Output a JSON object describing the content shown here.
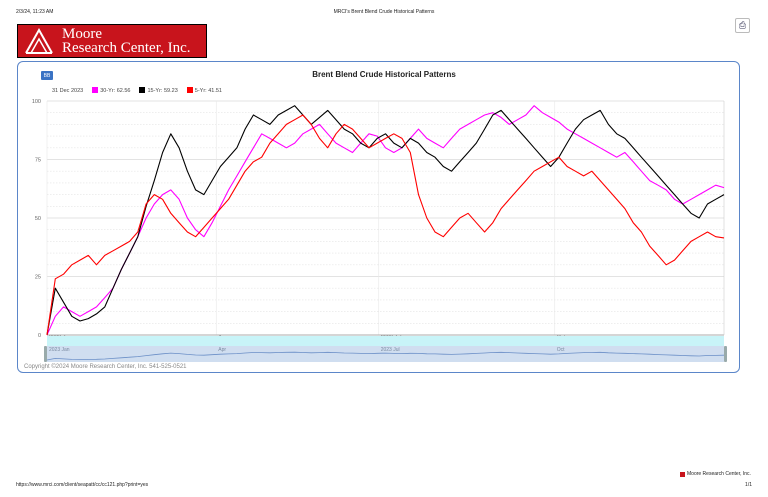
{
  "browser": {
    "datetime": "2/3/24, 11:23 AM",
    "page_title": "MRCI's Brent Blend Crude Historical Patterns",
    "url": "https://www.mrci.com/client/seapatt/cc/cc121.php?print=yes",
    "page_count": "1/1",
    "footer_brand": "Moore Research Center, Inc."
  },
  "logo": {
    "line1": "Moore",
    "line2": "Research Center, Inc."
  },
  "toolbar": {
    "print_icon": "print-icon",
    "bb_label": "BB"
  },
  "legend": {
    "date": "31 Dec 2023",
    "items": [
      {
        "label": "30-Yr: 62.56",
        "color": "#ff00ff"
      },
      {
        "label": "15-Yr: 59.23",
        "color": "#000000"
      },
      {
        "label": "5-Yr: 41.51",
        "color": "#ff0000"
      }
    ]
  },
  "copyright": "Copyright ©2024 Moore Research Center, Inc. 541-525-0521",
  "navigator": {
    "labels": [
      "2023 Jan",
      "Apr",
      "2023 Jul",
      "Oct"
    ]
  },
  "chart_data": {
    "type": "line",
    "title": "Brent Blend Crude Historical Patterns",
    "x_ticks": [
      "2023 Jan",
      "Apr",
      "2023 Jul",
      "Oct"
    ],
    "y_ticks": [
      0,
      25,
      50,
      75,
      100
    ],
    "ylim": [
      0,
      100
    ],
    "grid": true,
    "series": [
      {
        "name": "30-Yr: 62.56",
        "color": "#ff00ff",
        "values": [
          0,
          8,
          12,
          10,
          8,
          10,
          12,
          16,
          20,
          28,
          35,
          42,
          50,
          56,
          60,
          62,
          58,
          50,
          45,
          42,
          48,
          55,
          62,
          68,
          74,
          80,
          86,
          84,
          82,
          80,
          82,
          86,
          88,
          90,
          86,
          82,
          80,
          78,
          82,
          86,
          85,
          80,
          78,
          80,
          84,
          88,
          84,
          82,
          80,
          84,
          88,
          90,
          92,
          94,
          95,
          93,
          90,
          92,
          94,
          98,
          95,
          93,
          91,
          88,
          86,
          84,
          82,
          80,
          78,
          76,
          78,
          74,
          70,
          66,
          64,
          62,
          58,
          56,
          58,
          60,
          62,
          64,
          63
        ]
      },
      {
        "name": "15-Yr: 59.23",
        "color": "#000000",
        "values": [
          0,
          20,
          14,
          8,
          6,
          7,
          9,
          12,
          20,
          28,
          35,
          42,
          55,
          66,
          78,
          86,
          80,
          70,
          62,
          60,
          66,
          72,
          76,
          80,
          88,
          94,
          92,
          90,
          94,
          96,
          98,
          94,
          90,
          93,
          96,
          92,
          88,
          86,
          82,
          80,
          84,
          86,
          82,
          80,
          84,
          82,
          78,
          76,
          72,
          70,
          74,
          78,
          82,
          88,
          94,
          96,
          92,
          88,
          84,
          80,
          76,
          72,
          76,
          82,
          88,
          92,
          94,
          96,
          90,
          86,
          84,
          80,
          76,
          72,
          68,
          64,
          60,
          56,
          52,
          50,
          56,
          58,
          60
        ]
      },
      {
        "name": "5-Yr: 41.51",
        "color": "#ff0000",
        "values": [
          0,
          24,
          26,
          30,
          32,
          34,
          30,
          34,
          36,
          38,
          40,
          44,
          56,
          60,
          58,
          52,
          48,
          44,
          42,
          46,
          50,
          54,
          58,
          64,
          70,
          74,
          76,
          82,
          86,
          90,
          92,
          94,
          90,
          84,
          80,
          86,
          90,
          88,
          84,
          80,
          82,
          84,
          86,
          84,
          78,
          60,
          50,
          44,
          42,
          46,
          50,
          52,
          48,
          44,
          48,
          54,
          58,
          62,
          66,
          70,
          72,
          74,
          76,
          72,
          70,
          68,
          70,
          66,
          62,
          58,
          54,
          48,
          44,
          38,
          34,
          30,
          32,
          36,
          40,
          42,
          44,
          42,
          41.51
        ]
      }
    ]
  }
}
